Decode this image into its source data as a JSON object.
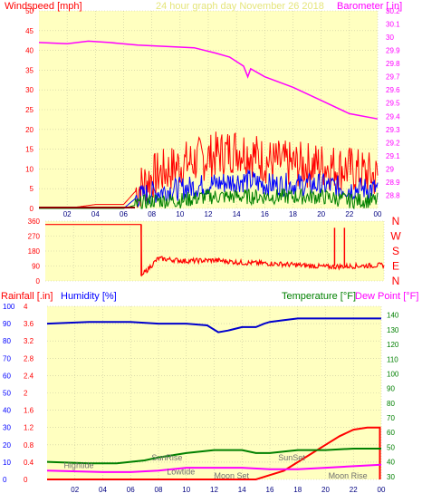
{
  "chart_data": [
    {
      "type": "line",
      "title": "24 hour graph day   November 26 2018",
      "ylabel": "Windspeed [mph]",
      "y2label": "Barometer [.in]",
      "x_ticks": [
        "02",
        "04",
        "06",
        "08",
        "10",
        "12",
        "14",
        "16",
        "18",
        "20",
        "22",
        "00"
      ],
      "ylim": [
        0,
        50
      ],
      "yticks": [
        "0",
        "5",
        "10",
        "15",
        "20",
        "25",
        "30",
        "35",
        "40",
        "45",
        "50"
      ],
      "y2lim": [
        28.7,
        30.2
      ],
      "y2ticks": [
        "28.8",
        "28.9",
        "29",
        "29.1",
        "29.2",
        "29.3",
        "29.4",
        "29.5",
        "29.6",
        "29.7",
        "29.8",
        "29.9",
        "30",
        "30.1",
        "30.2"
      ],
      "grid": true,
      "colors": {
        "gust": "#ff0000",
        "average": "#0000ff",
        "lull": "#008000",
        "barometer": "#ff00ff",
        "axis": "#ff0000",
        "baro_axis": "#ff00ff"
      },
      "series": [
        {
          "x": [
            0,
            2,
            4,
            6,
            7,
            8,
            10,
            12,
            14,
            15,
            16,
            18,
            20,
            22,
            24
          ],
          "values": [
            0,
            0,
            1,
            1,
            5,
            8,
            11,
            13,
            15,
            14,
            12,
            11,
            11,
            10,
            8
          ]
        },
        {
          "x": [
            0,
            2,
            4,
            6,
            7,
            8,
            10,
            12,
            14,
            15,
            16,
            18,
            20,
            22,
            24
          ],
          "values": [
            0,
            0,
            0,
            0,
            3,
            4,
            5,
            6,
            7,
            7,
            6,
            6,
            6,
            5,
            5
          ]
        },
        {
          "x": [
            0,
            2,
            4,
            6,
            7,
            8,
            10,
            12,
            14,
            15,
            16,
            18,
            20,
            22,
            24
          ],
          "values": [
            0,
            0,
            0,
            0,
            1,
            2,
            2,
            3,
            3,
            3,
            3,
            3,
            3,
            2,
            2
          ]
        },
        {
          "x": [
            0,
            2,
            3.5,
            5,
            7,
            9,
            11,
            12.5,
            13.5,
            14.5,
            14.8,
            15,
            16,
            18,
            20,
            22,
            24
          ],
          "values": [
            29.96,
            29.95,
            29.97,
            29.96,
            29.94,
            29.93,
            29.92,
            29.88,
            29.85,
            29.78,
            29.7,
            29.76,
            29.7,
            29.62,
            29.52,
            29.42,
            29.38
          ]
        }
      ]
    },
    {
      "type": "line",
      "ylim": [
        0,
        360
      ],
      "yticks": [
        "0",
        "90",
        "180",
        "270",
        "360"
      ],
      "direction_labels": [
        "N",
        "W",
        "S",
        "E",
        "N"
      ],
      "x_ticks": [
        "02",
        "04",
        "06",
        "08",
        "10",
        "12",
        "14",
        "16",
        "18",
        "20",
        "22",
        "00"
      ],
      "grid": true,
      "colors": {
        "direction": "#ff0000",
        "dir_labels": "#ff0000"
      },
      "series": [
        {
          "x": [
            0,
            6.8,
            6.8,
            8,
            10,
            12,
            14,
            16,
            18,
            20,
            22,
            24
          ],
          "values": [
            340,
            340,
            30,
            135,
            120,
            125,
            110,
            105,
            95,
            85,
            90,
            95
          ]
        }
      ]
    },
    {
      "type": "line",
      "y_left_label": "Rainfall [.in]",
      "y_humidity_label": "Humidity [%]",
      "y_temp_label": "Temperature [°F]",
      "y_dew_label": "Dew Point [°F]",
      "rain_ylim": [
        0,
        4
      ],
      "rain_ticks": [
        "0",
        "0.4",
        "0.8",
        "1.2",
        "1.6",
        "2",
        "2.4",
        "2.8",
        "3.2",
        "3.6",
        "4"
      ],
      "hum_ylim": [
        0,
        100
      ],
      "hum_ticks": [
        "0",
        "10",
        "20",
        "30",
        "40",
        "50",
        "60",
        "70",
        "80",
        "90",
        "100"
      ],
      "temp_ylim": [
        28,
        146
      ],
      "temp_ticks": [
        "30",
        "40",
        "50",
        "60",
        "70",
        "80",
        "90",
        "100",
        "110",
        "120",
        "130",
        "140"
      ],
      "x_ticks": [
        "02",
        "04",
        "06",
        "08",
        "10",
        "12",
        "14",
        "16",
        "18",
        "20",
        "22",
        "00"
      ],
      "grid": true,
      "colors": {
        "rain": "#ff0000",
        "humidity": "#0000cd",
        "temperature": "#008000",
        "dewpoint": "#ff00ff",
        "rain_axis": "#ff0000",
        "hum_axis": "#0000ff",
        "temp_axis": "#008000"
      },
      "annotations": [
        {
          "text": "Hightide",
          "x": 1.2,
          "y": 0.32
        },
        {
          "text": "SunRise",
          "x": 7.5,
          "y": 0.5
        },
        {
          "text": "Lowtide",
          "x": 8.6,
          "y": 0.18
        },
        {
          "text": "Moon Set",
          "x": 12.0,
          "y": 0.08
        },
        {
          "text": "SunSet",
          "x": 16.6,
          "y": 0.5
        },
        {
          "text": "Moon Rise",
          "x": 20.2,
          "y": 0.08
        }
      ],
      "series": [
        {
          "x": [
            0,
            15,
            16,
            17,
            18,
            19,
            20,
            21,
            22,
            23,
            23.9,
            23.9
          ],
          "values": [
            0,
            0,
            0.1,
            0.2,
            0.4,
            0.6,
            0.8,
            1.0,
            1.15,
            1.2,
            1.2,
            0
          ]
        },
        {
          "x": [
            0,
            3,
            6,
            8,
            10,
            11.5,
            12.3,
            13,
            14,
            15,
            15.6,
            16,
            17,
            18,
            20,
            22,
            24
          ],
          "values": [
            90,
            91,
            91,
            90,
            90,
            89,
            85,
            86,
            88,
            88,
            90,
            91,
            92,
            93,
            93,
            93,
            93
          ]
        },
        {
          "x": [
            0,
            3,
            5,
            7,
            8,
            10,
            12,
            14,
            15,
            16,
            18,
            20,
            22,
            24
          ],
          "values": [
            40,
            39,
            39,
            41,
            43,
            46,
            48,
            48,
            46,
            46,
            48,
            48,
            49,
            49
          ]
        },
        {
          "x": [
            0,
            4,
            6,
            8,
            10,
            12,
            14,
            16,
            18,
            20,
            22,
            24
          ],
          "values": [
            34,
            33,
            33,
            34,
            36,
            36,
            36,
            35,
            35,
            36,
            37,
            38
          ]
        }
      ]
    }
  ]
}
